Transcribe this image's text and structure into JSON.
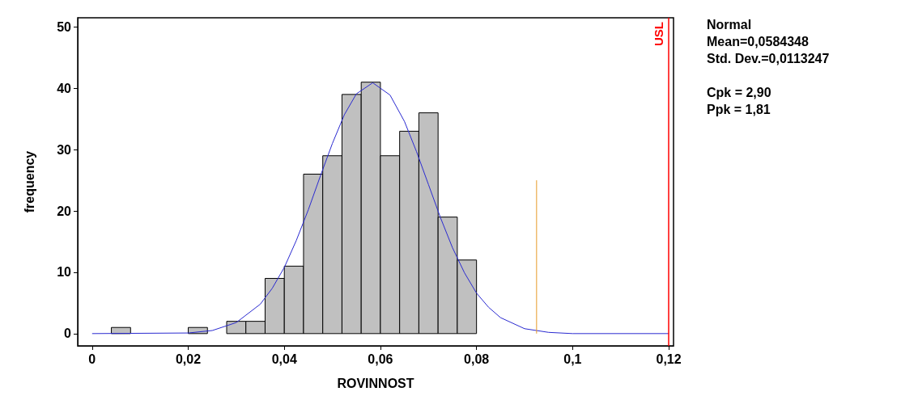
{
  "chart_data": {
    "type": "histogram",
    "xlabel": "ROVINNOST",
    "ylabel": "frequency",
    "bins": [
      0,
      0.004,
      0.008,
      0.012,
      0.016,
      0.02,
      0.024,
      0.028,
      0.032,
      0.036,
      0.04,
      0.044,
      0.048,
      0.052,
      0.056,
      0.06,
      0.064,
      0.068,
      0.072,
      0.076,
      0.08
    ],
    "values": [
      0,
      1,
      0,
      0,
      0,
      1,
      0,
      2,
      2,
      9,
      11,
      26,
      29,
      39,
      41,
      29,
      33,
      36,
      19,
      12
    ],
    "color": "#c0c0c0",
    "series": [
      {
        "type": "line",
        "color": "#2a2ad0",
        "x": [
          0,
          0.02,
          0.025,
          0.03,
          0.035,
          0.0375,
          0.04,
          0.0425,
          0.045,
          0.0475,
          0.05,
          0.0525,
          0.055,
          0.0584,
          0.062,
          0.065,
          0.0675,
          0.07,
          0.0725,
          0.075,
          0.0775,
          0.08,
          0.0825,
          0.085,
          0.09,
          0.095,
          0.1,
          0.12
        ],
        "values": [
          0,
          0.1,
          0.5,
          1.8,
          4.8,
          7.4,
          10.8,
          15.2,
          20.2,
          25.7,
          31,
          35.7,
          39.1,
          40.9,
          38.9,
          34.6,
          29.7,
          24.3,
          18.9,
          14,
          9.9,
          6.6,
          4.3,
          2.6,
          0.8,
          0.2,
          0,
          0
        ]
      },
      {
        "type": "line",
        "color": "#e69a28",
        "x": [
          0.0925,
          0.0925
        ],
        "values": [
          0,
          25
        ]
      }
    ],
    "ref_lines": [
      {
        "axis": "x",
        "value": 0.12,
        "label": "USL",
        "color": "#ff0000"
      }
    ],
    "xlim": [
      -0.003,
      0.121
    ],
    "ylim": [
      -2,
      51.5
    ],
    "xticks": [
      0,
      {
        "value": 0.02,
        "label": "0,02"
      },
      {
        "value": 0.04,
        "label": "0,04"
      },
      {
        "value": 0.06,
        "label": "0,06"
      },
      {
        "value": 0.08,
        "label": "0,08"
      },
      {
        "value": 0.1,
        "label": "0,1"
      },
      {
        "value": 0.12,
        "label": "0,12"
      }
    ],
    "yticks": [
      0,
      10,
      20,
      30,
      40,
      50
    ],
    "grid": false,
    "marker": "none",
    "annotations": [
      "Normal",
      "Mean=0,0584348",
      "Std. Dev.=0,0113247",
      "Cpk = 2,90",
      "Ppk = 1,81"
    ]
  }
}
